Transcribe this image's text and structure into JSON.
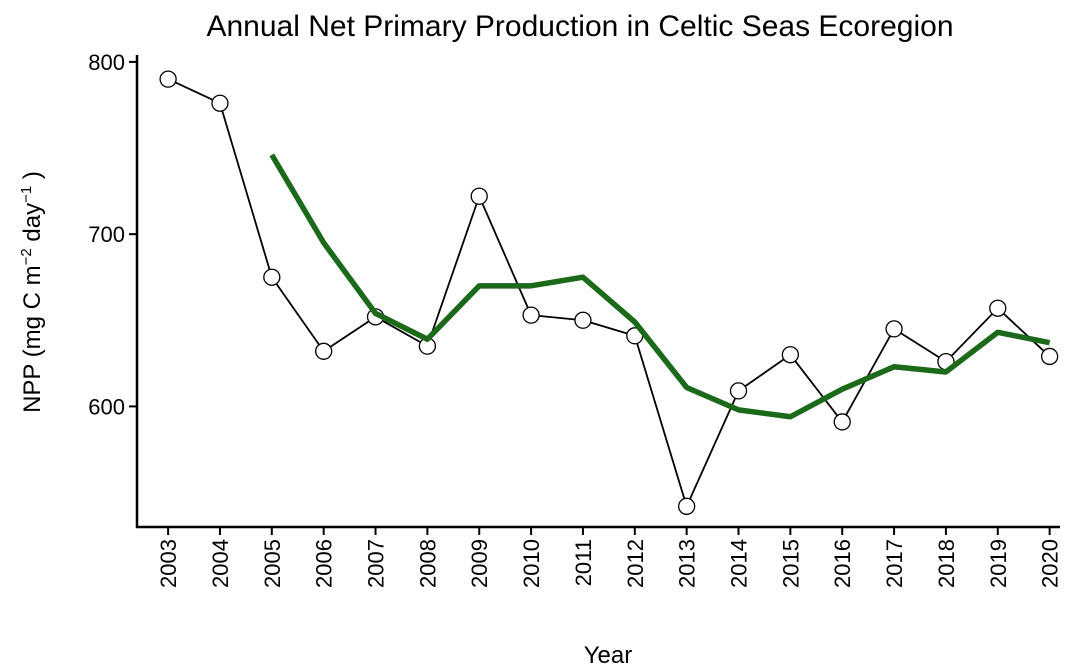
{
  "chart_data": {
    "type": "line",
    "title": "Annual Net Primary Production in Celtic Seas Ecoregion",
    "x_label": "Year",
    "y_label": [
      "NPP (mg C m",
      "−2",
      " day",
      "−1",
      " )"
    ],
    "x": [
      2003,
      2004,
      2005,
      2006,
      2007,
      2008,
      2009,
      2010,
      2011,
      2012,
      2013,
      2014,
      2015,
      2016,
      2017,
      2018,
      2019,
      2020
    ],
    "series": [
      {
        "color": "#000000",
        "marker": "circle",
        "values": [
          790,
          776,
          675,
          632,
          652,
          635,
          722,
          653,
          650,
          641,
          542,
          609,
          630,
          591,
          645,
          626,
          657,
          629
        ]
      },
      {
        "color": "#1a6a1a",
        "marker": "none",
        "values": [
          null,
          null,
          746,
          695,
          654,
          639,
          670,
          670,
          675,
          649,
          611,
          598,
          594,
          610,
          623,
          620,
          643,
          637
        ]
      }
    ],
    "xlim": [
      2002.4,
      2020.2
    ],
    "xticks": [
      2003,
      2004,
      2005,
      2006,
      2007,
      2008,
      2009,
      2010,
      2011,
      2012,
      2013,
      2014,
      2015,
      2016,
      2017,
      2018,
      2019,
      2020
    ],
    "ylim": [
      530,
      804
    ],
    "yticks": [
      600,
      700,
      800
    ],
    "grid": false
  }
}
